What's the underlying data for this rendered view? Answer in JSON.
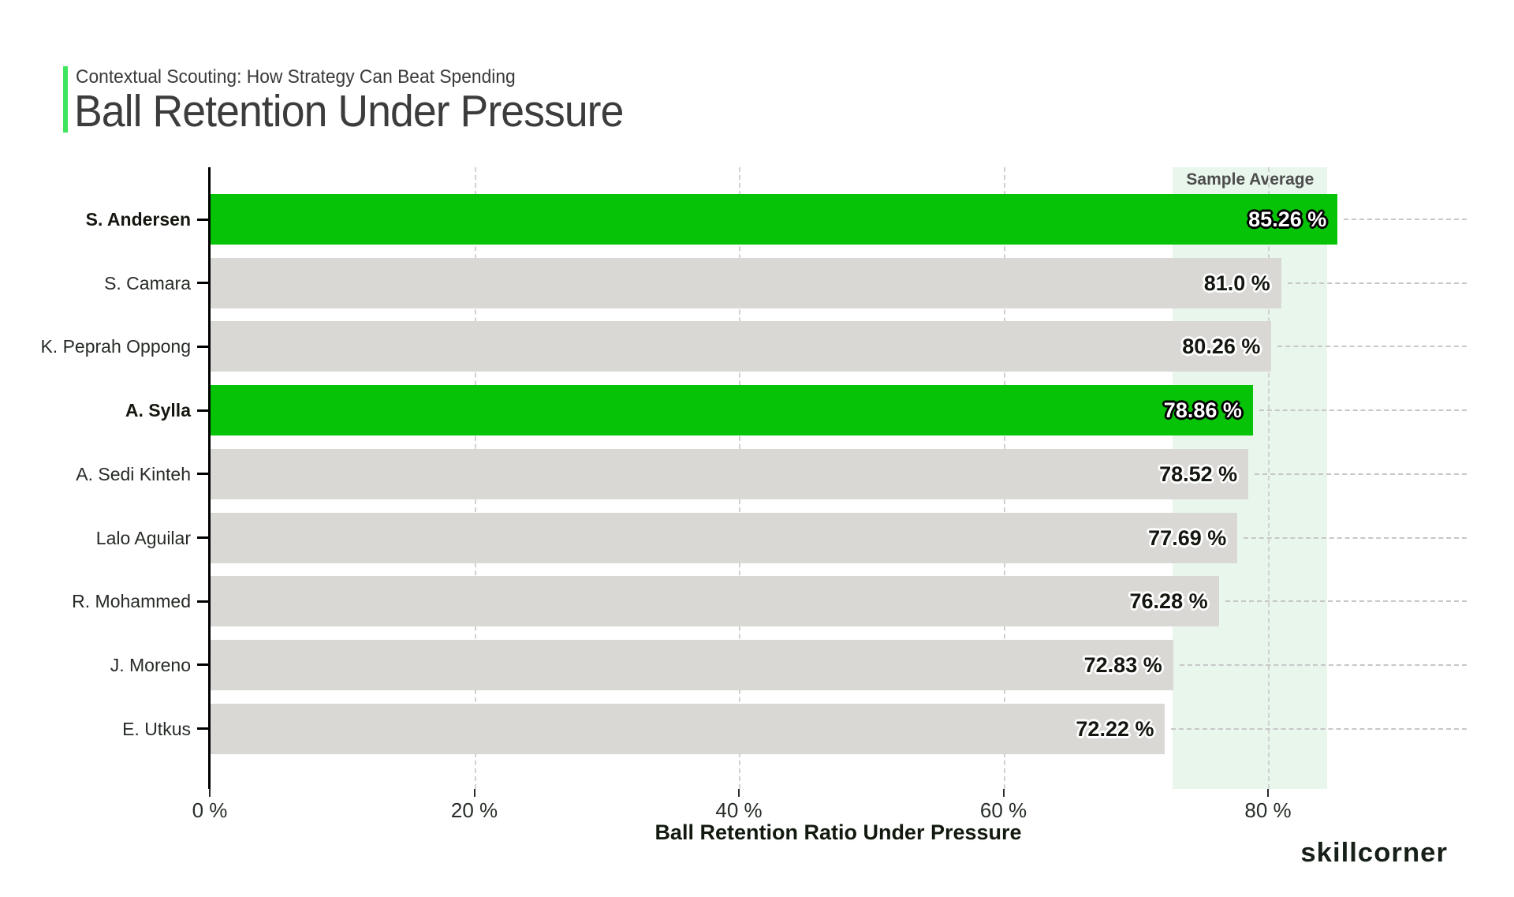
{
  "header": {
    "kicker": "Contextual Scouting: How Strategy Can Beat Spending",
    "title": "Ball Retention Under Pressure"
  },
  "footer": {
    "brand": "skillcorner"
  },
  "chart_data": {
    "type": "bar",
    "orientation": "horizontal",
    "title": "Ball Retention Under Pressure",
    "subtitle": "Contextual Scouting: How Strategy Can Beat Spending",
    "xlabel": "Ball Retention Ratio Under Pressure",
    "xlim": [
      0,
      95
    ],
    "grid": "vertical dashed gridlines at major ticks; horizontal dashed leader line from each bar end to plot right edge",
    "legend": "none",
    "xticks": [
      {
        "value": 0,
        "label": "0 %"
      },
      {
        "value": 20,
        "label": "20 %"
      },
      {
        "value": 40,
        "label": "40 %"
      },
      {
        "value": 60,
        "label": "60 %"
      },
      {
        "value": 80,
        "label": "80 %"
      }
    ],
    "bars": [
      {
        "player": "S. Andersen",
        "value": 85.26,
        "label": "85.26 %",
        "highlighted": true
      },
      {
        "player": "S. Camara",
        "value": 81.0,
        "label": "81.0 %",
        "highlighted": false
      },
      {
        "player": "K. Peprah Oppong",
        "value": 80.26,
        "label": "80.26 %",
        "highlighted": false
      },
      {
        "player": "A. Sylla",
        "value": 78.86,
        "label": "78.86 %",
        "highlighted": true
      },
      {
        "player": "A. Sedi Kinteh",
        "value": 78.52,
        "label": "78.52 %",
        "highlighted": false
      },
      {
        "player": "Lalo Aguilar",
        "value": 77.69,
        "label": "77.69 %",
        "highlighted": false
      },
      {
        "player": "R. Mohammed",
        "value": 76.28,
        "label": "76.28 %",
        "highlighted": false
      },
      {
        "player": "J. Moreno",
        "value": 72.83,
        "label": "72.83 %",
        "highlighted": false
      },
      {
        "player": "E. Utkus",
        "value": 72.22,
        "label": "72.22 %",
        "highlighted": false
      }
    ],
    "sample_average_band": {
      "label": "Sample Average",
      "from_pct": 72.8,
      "to_pct": 84.5
    },
    "colors": {
      "bar_default": "#d9d8d4",
      "bar_highlight": "#07c307",
      "band": "#e9f6ec",
      "accent": "#3fe55c",
      "leader_dash": "#c7c7c7",
      "gridline": "#d0d0d0"
    }
  }
}
